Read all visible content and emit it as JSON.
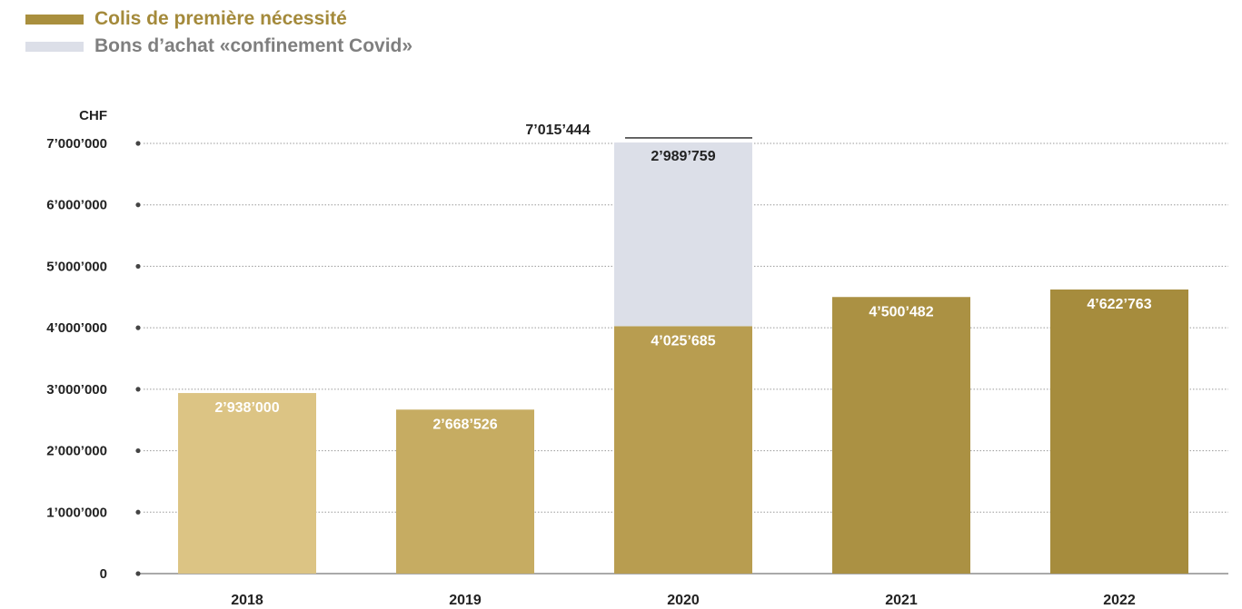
{
  "legend": {
    "items": [
      {
        "label": "Colis de première nécessité",
        "color": "#A98F3E",
        "text_color": "#A48A3B"
      },
      {
        "label": "Bons d’achat «confinement Covid»",
        "color": "#DCDFE8",
        "text_color": "#7F7F7F"
      }
    ]
  },
  "chart_data": {
    "type": "bar",
    "stacked": true,
    "unit_label": "CHF",
    "categories": [
      "2018",
      "2019",
      "2020",
      "2021",
      "2022"
    ],
    "series": [
      {
        "name": "Colis de première nécessité",
        "values": [
          2938000,
          2668526,
          4025685,
          4500482,
          4622763
        ]
      },
      {
        "name": "Bons d’achat «confinement Covid»",
        "values": [
          0,
          0,
          2989759,
          0,
          0
        ]
      }
    ],
    "data_labels": {
      "base": [
        "2’938’000",
        "2’668’526",
        "4’025’685",
        "4’500’482",
        "4’622’763"
      ],
      "stack": [
        "",
        "",
        "2’989’759",
        "",
        ""
      ]
    },
    "total_label": {
      "index": 2,
      "text": "7’015’444"
    },
    "ylim": [
      0,
      7000000
    ],
    "yticks": [
      0,
      1000000,
      2000000,
      3000000,
      4000000,
      5000000,
      6000000,
      7000000
    ],
    "ytick_labels": [
      "0",
      "1’000’000",
      "2’000’000",
      "3’000’000",
      "4’000’000",
      "5’000’000",
      "6’000’000",
      "7’000’000"
    ],
    "bar_colors": [
      "#DCC484",
      "#C6AC62",
      "#B89D50",
      "#AB9143",
      "#A68C3D"
    ],
    "stack_color": "#DCDFE8",
    "grid": true
  }
}
